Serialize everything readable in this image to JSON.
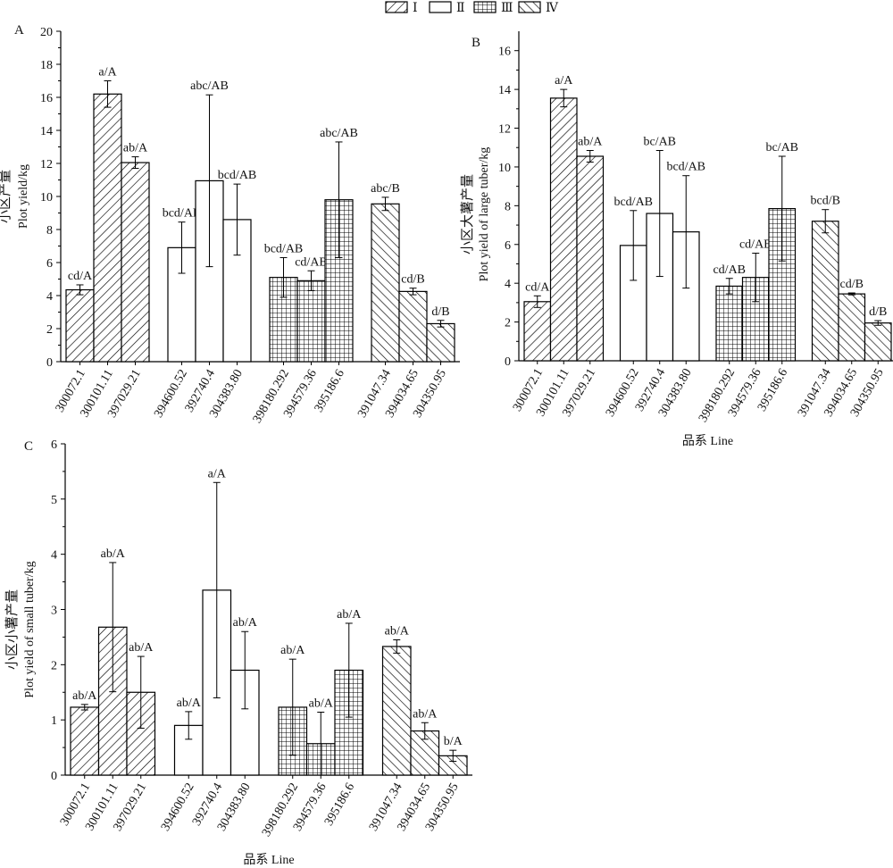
{
  "legend": {
    "entries": [
      {
        "label": "Ⅰ",
        "group": "I"
      },
      {
        "label": "Ⅱ",
        "group": "II"
      },
      {
        "label": "Ⅲ",
        "group": "III"
      },
      {
        "label": "Ⅳ",
        "group": "IV"
      }
    ]
  },
  "chart_data": [
    {
      "type": "bar",
      "panel_label": "A",
      "ylabel_cn": "小区产量",
      "ylabel_en": "Plot yield/kg",
      "xlabel": "",
      "ylim": [
        0,
        20
      ],
      "yticks": [
        0,
        2,
        4,
        6,
        8,
        10,
        12,
        14,
        16,
        18,
        20
      ],
      "categories": [
        "300072.1",
        "300101.11",
        "397029.21",
        "394600.52",
        "392740.4",
        "304383.80",
        "398180.292",
        "394579.36",
        "395186.6",
        "391047.34",
        "394034.65",
        "304350.95"
      ],
      "groups": [
        "I",
        "I",
        "I",
        "II",
        "II",
        "II",
        "III",
        "III",
        "III",
        "IV",
        "IV",
        "IV"
      ],
      "values": [
        4.35,
        16.2,
        12.05,
        6.9,
        10.95,
        8.6,
        5.1,
        4.9,
        9.8,
        9.55,
        4.25,
        2.3
      ],
      "errors": [
        0.3,
        0.8,
        0.35,
        1.55,
        5.2,
        2.15,
        1.2,
        0.6,
        3.5,
        0.4,
        0.2,
        0.2
      ],
      "annotations": [
        "cd/A",
        "a/A",
        "ab/A",
        "bcd/AB",
        "abc/AB",
        "bcd/AB",
        "bcd/AB",
        "cd/AB",
        "abc/AB",
        "abc/B",
        "cd/B",
        "d/B"
      ]
    },
    {
      "type": "bar",
      "panel_label": "B",
      "ylabel_cn": "小区大薯产量",
      "ylabel_en": "Plot yield of large tuber/kg",
      "xlabel": "品系 Line",
      "ylim": [
        0,
        17
      ],
      "yticks": [
        0,
        2,
        4,
        6,
        8,
        10,
        12,
        14,
        16
      ],
      "categories": [
        "300072.1",
        "300101.11",
        "397029.21",
        "394600.52",
        "392740.4",
        "304383.80",
        "398180.292",
        "394579.36",
        "395186.6",
        "391047.34",
        "394034.65",
        "304350.95"
      ],
      "groups": [
        "I",
        "I",
        "I",
        "II",
        "II",
        "II",
        "III",
        "III",
        "III",
        "IV",
        "IV",
        "IV"
      ],
      "values": [
        3.05,
        13.55,
        10.55,
        5.95,
        7.6,
        6.65,
        3.85,
        4.3,
        7.85,
        7.2,
        3.45,
        1.95
      ],
      "errors": [
        0.3,
        0.45,
        0.3,
        1.8,
        3.25,
        2.9,
        0.4,
        1.25,
        2.7,
        0.6,
        0.05,
        0.12
      ],
      "annotations": [
        "cd/A",
        "a/A",
        "ab/A",
        "bcd/AB",
        "bc/AB",
        "bcd/AB",
        "cd/AB",
        "cd/AB",
        "bc/AB",
        "bcd/B",
        "cd/B",
        "d/B"
      ]
    },
    {
      "type": "bar",
      "panel_label": "C",
      "ylabel_cn": "小区小薯产量",
      "ylabel_en": "Plot yield of small tuber/kg",
      "xlabel": "品系 Line",
      "ylim": [
        0,
        6
      ],
      "yticks": [
        0,
        1,
        2,
        3,
        4,
        5,
        6
      ],
      "categories": [
        "300072.1",
        "300101.11",
        "397029.21",
        "394600.52",
        "392740.4",
        "304383.80",
        "398180.292",
        "394579.36",
        "395186.6",
        "391047.34",
        "394034.65",
        "304350.95"
      ],
      "groups": [
        "I",
        "I",
        "I",
        "II",
        "II",
        "II",
        "III",
        "III",
        "III",
        "IV",
        "IV",
        "IV"
      ],
      "values": [
        1.23,
        2.68,
        1.5,
        0.9,
        3.35,
        1.9,
        1.23,
        0.57,
        1.9,
        2.33,
        0.8,
        0.35
      ],
      "errors": [
        0.05,
        1.17,
        0.65,
        0.25,
        1.95,
        0.7,
        0.87,
        0.57,
        0.85,
        0.12,
        0.15,
        0.1
      ],
      "annotations": [
        "ab/A",
        "ab/A",
        "ab/A",
        "ab/A",
        "a/A",
        "ab/A",
        "ab/A",
        "ab/A",
        "ab/A",
        "ab/A",
        "ab/A",
        "b/A"
      ]
    }
  ]
}
